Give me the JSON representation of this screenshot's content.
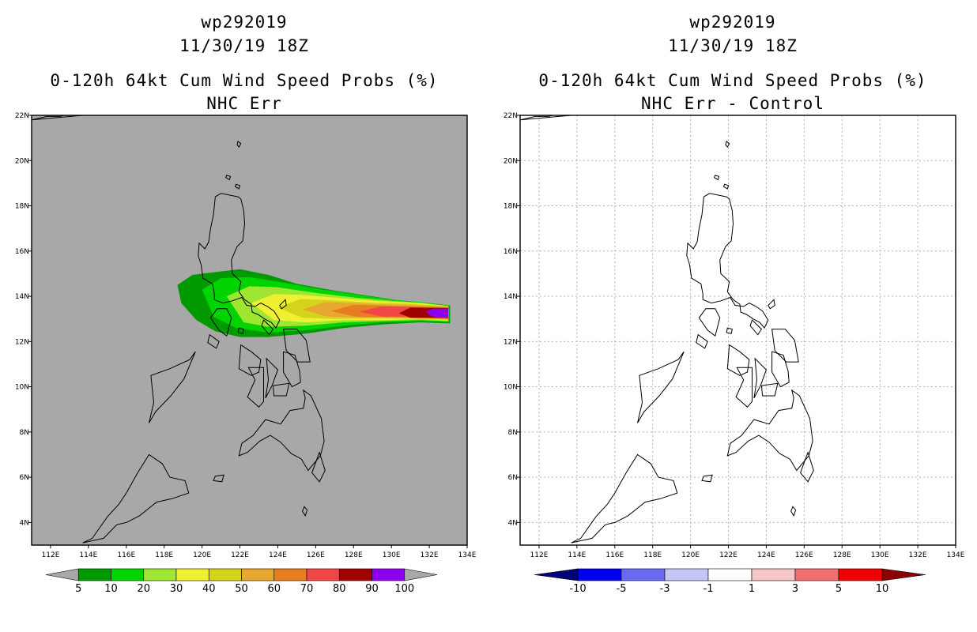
{
  "chart_data": [
    {
      "type": "heatmap",
      "storm_id": "wp292019",
      "datetime": "11/30/19 18Z",
      "title": "0-120h 64kt Cum Wind Speed Probs (%)",
      "subtitle": "NHC Err",
      "xlim": [
        111,
        134
      ],
      "ylim": [
        3,
        22
      ],
      "xticks": [
        "112E",
        "114E",
        "116E",
        "118E",
        "120E",
        "122E",
        "124E",
        "126E",
        "128E",
        "130E",
        "132E",
        "134E"
      ],
      "yticks": [
        "4N",
        "6N",
        "8N",
        "10N",
        "12N",
        "14N",
        "16N",
        "18N",
        "20N",
        "22N"
      ],
      "background": "#a8a8a8",
      "grid": false,
      "colorbar": {
        "labels": [
          "5",
          "10",
          "20",
          "30",
          "40",
          "50",
          "60",
          "70",
          "80",
          "90",
          "100"
        ],
        "colors": [
          "#a8a8a8",
          "#009a00",
          "#00d400",
          "#9ee632",
          "#f0f032",
          "#d4d41e",
          "#e6a82e",
          "#e67d1e",
          "#f04646",
          "#a00000",
          "#8c00f0",
          "#a8a8a8"
        ]
      },
      "probability_swath": [
        {
          "level": 5,
          "color": "#009a00",
          "shape": [
            [
              118.7,
              14.5
            ],
            [
              119.5,
              14.95
            ],
            [
              120.5,
              15.05
            ],
            [
              122,
              15.2
            ],
            [
              123.5,
              14.95
            ],
            [
              125,
              14.55
            ],
            [
              127,
              14.25
            ],
            [
              129,
              14.0
            ],
            [
              130.5,
              13.8
            ],
            [
              132,
              13.7
            ],
            [
              133.1,
              13.6
            ],
            [
              133.1,
              12.8
            ],
            [
              131.5,
              12.85
            ],
            [
              129.5,
              12.75
            ],
            [
              127.5,
              12.6
            ],
            [
              125.5,
              12.35
            ],
            [
              123.5,
              12.2
            ],
            [
              122,
              12.2
            ],
            [
              120.7,
              12.45
            ],
            [
              119.7,
              12.95
            ],
            [
              118.9,
              13.7
            ]
          ]
        },
        {
          "level": 10,
          "color": "#00d400",
          "shape": [
            [
              120,
              14.3
            ],
            [
              121,
              14.8
            ],
            [
              122.5,
              14.85
            ],
            [
              124,
              14.65
            ],
            [
              126,
              14.35
            ],
            [
              128,
              14.1
            ],
            [
              130,
              13.85
            ],
            [
              131.5,
              13.75
            ],
            [
              133.05,
              13.6
            ],
            [
              133.05,
              12.85
            ],
            [
              131.5,
              12.9
            ],
            [
              129.5,
              12.85
            ],
            [
              127.5,
              12.7
            ],
            [
              125.5,
              12.5
            ],
            [
              123.5,
              12.4
            ],
            [
              121.8,
              12.6
            ],
            [
              120.6,
              13.1
            ]
          ]
        },
        {
          "level": 20,
          "color": "#9ee632",
          "shape": [
            [
              121.3,
              14.0
            ],
            [
              122.5,
              14.45
            ],
            [
              124,
              14.4
            ],
            [
              126,
              14.15
            ],
            [
              128,
              13.95
            ],
            [
              130,
              13.8
            ],
            [
              131.5,
              13.72
            ],
            [
              133.0,
              13.58
            ],
            [
              133.0,
              12.9
            ],
            [
              131.5,
              12.95
            ],
            [
              129.5,
              12.9
            ],
            [
              127.5,
              12.85
            ],
            [
              125.5,
              12.7
            ],
            [
              123.5,
              12.65
            ],
            [
              122.2,
              12.85
            ]
          ]
        },
        {
          "level": 30,
          "color": "#f0f032",
          "shape": [
            [
              122.6,
              13.7
            ],
            [
              123.8,
              14.1
            ],
            [
              125.5,
              14.05
            ],
            [
              127.5,
              13.9
            ],
            [
              129.5,
              13.78
            ],
            [
              131.5,
              13.7
            ],
            [
              133.0,
              13.56
            ],
            [
              133.0,
              12.92
            ],
            [
              131.5,
              13.0
            ],
            [
              129.5,
              12.95
            ],
            [
              127.5,
              12.95
            ],
            [
              125.5,
              12.85
            ],
            [
              123.8,
              12.95
            ]
          ]
        },
        {
          "level": 40,
          "color": "#d4d41e",
          "shape": [
            [
              124.0,
              13.5
            ],
            [
              125.2,
              13.88
            ],
            [
              127,
              13.82
            ],
            [
              129,
              13.72
            ],
            [
              131,
              13.67
            ],
            [
              133.0,
              13.55
            ],
            [
              133.0,
              12.95
            ],
            [
              131,
              13.02
            ],
            [
              129,
              13.02
            ],
            [
              127,
              13.0
            ],
            [
              125.3,
              13.05
            ]
          ]
        },
        {
          "level": 50,
          "color": "#e6a82e",
          "shape": [
            [
              125.3,
              13.42
            ],
            [
              126.5,
              13.75
            ],
            [
              128.5,
              13.68
            ],
            [
              130.5,
              13.62
            ],
            [
              133.0,
              13.55
            ],
            [
              133.0,
              12.97
            ],
            [
              130.5,
              13.05
            ],
            [
              128.5,
              13.05
            ],
            [
              126.6,
              13.1
            ]
          ]
        },
        {
          "level": 60,
          "color": "#e67d1e",
          "shape": [
            [
              126.8,
              13.35
            ],
            [
              128,
              13.62
            ],
            [
              130,
              13.58
            ],
            [
              133.0,
              13.5
            ],
            [
              133.0,
              13.0
            ],
            [
              130,
              13.08
            ],
            [
              128.1,
              13.1
            ]
          ]
        },
        {
          "level": 70,
          "color": "#f04646",
          "shape": [
            [
              128.3,
              13.32
            ],
            [
              129.5,
              13.55
            ],
            [
              131.5,
              13.52
            ],
            [
              133.0,
              13.48
            ],
            [
              133.0,
              13.02
            ],
            [
              131.5,
              13.1
            ],
            [
              129.5,
              13.1
            ]
          ]
        },
        {
          "level": 80,
          "color": "#a00000",
          "shape": [
            [
              130.4,
              13.25
            ],
            [
              131.0,
              13.5
            ],
            [
              133.0,
              13.48
            ],
            [
              133.0,
              13.05
            ],
            [
              131.0,
              13.05
            ]
          ]
        },
        {
          "level": 90,
          "color": "#8c00f0",
          "shape": [
            [
              131.8,
              13.3
            ],
            [
              132.2,
              13.45
            ],
            [
              133.0,
              13.45
            ],
            [
              133.0,
              13.05
            ],
            [
              132.2,
              13.1
            ]
          ]
        }
      ]
    },
    {
      "type": "heatmap",
      "storm_id": "wp292019",
      "datetime": "11/30/19 18Z",
      "title": "0-120h 64kt Cum Wind Speed Probs (%)",
      "subtitle": "NHC Err - Control",
      "xlim": [
        111,
        134
      ],
      "ylim": [
        3,
        22
      ],
      "xticks": [
        "112E",
        "114E",
        "116E",
        "118E",
        "120E",
        "122E",
        "124E",
        "126E",
        "128E",
        "130E",
        "132E",
        "134E"
      ],
      "yticks": [
        "4N",
        "6N",
        "8N",
        "10N",
        "12N",
        "14N",
        "16N",
        "18N",
        "20N",
        "22N"
      ],
      "background": "#ffffff",
      "grid": true,
      "colorbar": {
        "labels": [
          "-10",
          "-5",
          "-3",
          "-1",
          "1",
          "3",
          "5",
          "10"
        ],
        "colors": [
          "#00007a",
          "#0000f0",
          "#6a6af0",
          "#c6c6f5",
          "#ffffff",
          "#f5c6c6",
          "#f07070",
          "#f00000",
          "#8c0000"
        ]
      },
      "probability_swath": []
    }
  ],
  "map_outlines": [
    [
      [
        121.9,
        18.4
      ],
      [
        121.0,
        18.55
      ],
      [
        120.7,
        18.4
      ],
      [
        120.6,
        17.6
      ],
      [
        120.45,
        17.0
      ],
      [
        120.35,
        16.4
      ],
      [
        120.15,
        16.1
      ],
      [
        119.85,
        16.35
      ],
      [
        119.8,
        15.8
      ],
      [
        119.95,
        15.4
      ],
      [
        120.05,
        14.8
      ],
      [
        120.55,
        14.55
      ],
      [
        120.65,
        14.1
      ],
      [
        120.65,
        13.85
      ],
      [
        121.1,
        13.7
      ],
      [
        121.6,
        13.8
      ],
      [
        122.1,
        13.95
      ],
      [
        122.35,
        13.6
      ],
      [
        122.8,
        13.55
      ],
      [
        123.1,
        13.7
      ],
      [
        123.45,
        13.55
      ],
      [
        123.8,
        13.35
      ],
      [
        124.1,
        12.95
      ],
      [
        123.9,
        12.6
      ],
      [
        123.65,
        12.85
      ],
      [
        123.3,
        13.0
      ],
      [
        122.95,
        13.2
      ],
      [
        122.65,
        13.3
      ],
      [
        122.6,
        13.65
      ],
      [
        122.25,
        13.85
      ],
      [
        121.95,
        14.2
      ],
      [
        122.05,
        14.65
      ],
      [
        121.6,
        15.0
      ],
      [
        121.55,
        15.6
      ],
      [
        121.85,
        16.2
      ],
      [
        122.15,
        16.45
      ],
      [
        122.25,
        17.2
      ],
      [
        122.2,
        17.8
      ],
      [
        122.05,
        18.3
      ]
    ]
  ],
  "islands": [
    [
      [
        121.3,
        13.45
      ],
      [
        121.55,
        13.05
      ],
      [
        121.3,
        12.25
      ],
      [
        120.9,
        12.5
      ],
      [
        120.45,
        13.05
      ],
      [
        120.8,
        13.45
      ]
    ],
    [
      [
        124.3,
        12.55
      ],
      [
        125.0,
        12.55
      ],
      [
        125.5,
        12.05
      ],
      [
        125.7,
        11.1
      ],
      [
        125.05,
        11.1
      ],
      [
        124.45,
        11.6
      ]
    ],
    [
      [
        124.3,
        11.55
      ],
      [
        124.9,
        11.4
      ],
      [
        125.15,
        10.7
      ],
      [
        125.2,
        10.2
      ],
      [
        124.75,
        10.0
      ],
      [
        124.3,
        10.65
      ]
    ],
    [
      [
        122.05,
        11.85
      ],
      [
        122.6,
        11.55
      ],
      [
        123.1,
        11.2
      ],
      [
        123.0,
        10.65
      ],
      [
        122.6,
        10.5
      ],
      [
        121.95,
        10.8
      ]
    ],
    [
      [
        122.45,
        10.85
      ],
      [
        123.25,
        10.85
      ],
      [
        123.25,
        9.35
      ],
      [
        123.0,
        9.1
      ],
      [
        122.4,
        9.55
      ],
      [
        122.8,
        10.3
      ]
    ],
    [
      [
        123.4,
        11.25
      ],
      [
        124.0,
        10.75
      ],
      [
        123.7,
        10.05
      ],
      [
        123.35,
        9.5
      ],
      [
        123.5,
        10.3
      ]
    ],
    [
      [
        123.75,
        10.05
      ],
      [
        124.6,
        10.15
      ],
      [
        124.45,
        9.6
      ],
      [
        123.8,
        9.6
      ]
    ],
    [
      [
        117.3,
        10.5
      ],
      [
        118.3,
        10.8
      ],
      [
        119.35,
        11.2
      ],
      [
        119.65,
        11.55
      ],
      [
        119.05,
        10.35
      ],
      [
        118.35,
        9.6
      ],
      [
        117.55,
        8.9
      ],
      [
        117.2,
        8.4
      ],
      [
        117.45,
        9.3
      ]
    ],
    [
      [
        125.35,
        9.85
      ],
      [
        125.75,
        9.6
      ],
      [
        126.3,
        8.6
      ],
      [
        126.45,
        7.6
      ],
      [
        126.25,
        6.95
      ],
      [
        125.6,
        6.3
      ],
      [
        125.25,
        6.8
      ],
      [
        124.7,
        7.05
      ],
      [
        124.15,
        7.55
      ],
      [
        123.6,
        7.85
      ],
      [
        123.05,
        7.6
      ],
      [
        122.4,
        7.1
      ],
      [
        121.95,
        6.95
      ],
      [
        122.1,
        7.5
      ],
      [
        122.7,
        7.85
      ],
      [
        123.35,
        8.55
      ],
      [
        124.15,
        8.35
      ],
      [
        124.65,
        8.95
      ],
      [
        125.35,
        9.05
      ],
      [
        125.45,
        9.5
      ]
    ],
    [
      [
        116.0,
        4.0
      ],
      [
        116.7,
        4.3
      ],
      [
        117.6,
        4.9
      ],
      [
        118.4,
        5.05
      ],
      [
        119.3,
        5.3
      ],
      [
        119.1,
        5.85
      ],
      [
        118.3,
        6.0
      ],
      [
        117.9,
        6.6
      ],
      [
        117.2,
        7.0
      ],
      [
        116.6,
        6.2
      ],
      [
        116.0,
        5.3
      ],
      [
        115.6,
        4.8
      ],
      [
        115.0,
        4.25
      ],
      [
        114.2,
        3.3
      ],
      [
        113.7,
        3.1
      ],
      [
        114.8,
        3.3
      ],
      [
        115.5,
        3.9
      ]
    ],
    [
      [
        121.9,
        20.85
      ],
      [
        122.05,
        20.75
      ],
      [
        121.95,
        20.6
      ],
      [
        121.85,
        20.7
      ]
    ],
    [
      [
        121.3,
        19.35
      ],
      [
        121.5,
        19.3
      ],
      [
        121.45,
        19.15
      ],
      [
        121.25,
        19.25
      ]
    ],
    [
      [
        121.8,
        18.95
      ],
      [
        122.0,
        18.9
      ],
      [
        121.95,
        18.75
      ],
      [
        121.75,
        18.85
      ]
    ],
    [
      [
        124.4,
        13.85
      ],
      [
        124.1,
        13.6
      ],
      [
        124.2,
        13.45
      ],
      [
        124.45,
        13.6
      ]
    ],
    [
      [
        123.25,
        12.95
      ],
      [
        123.75,
        12.55
      ],
      [
        123.55,
        12.3
      ],
      [
        123.15,
        12.7
      ]
    ],
    [
      [
        121.95,
        12.6
      ],
      [
        122.2,
        12.55
      ],
      [
        122.15,
        12.35
      ],
      [
        121.9,
        12.4
      ]
    ],
    [
      [
        120.4,
        12.3
      ],
      [
        120.9,
        12.0
      ],
      [
        120.75,
        11.7
      ],
      [
        120.3,
        11.95
      ]
    ],
    [
      [
        126.2,
        7.1
      ],
      [
        126.5,
        6.3
      ],
      [
        126.2,
        5.8
      ],
      [
        125.8,
        6.2
      ]
    ],
    [
      [
        120.7,
        6.05
      ],
      [
        121.15,
        6.1
      ],
      [
        121.05,
        5.8
      ],
      [
        120.6,
        5.85
      ]
    ],
    [
      [
        125.4,
        4.7
      ],
      [
        125.55,
        4.55
      ],
      [
        125.45,
        4.3
      ],
      [
        125.3,
        4.5
      ]
    ],
    [
      [
        111.0,
        21.8
      ],
      [
        111.8,
        21.95
      ],
      [
        112.5,
        21.95
      ],
      [
        113.2,
        22.1
      ],
      [
        113.7,
        22.0
      ]
    ]
  ]
}
